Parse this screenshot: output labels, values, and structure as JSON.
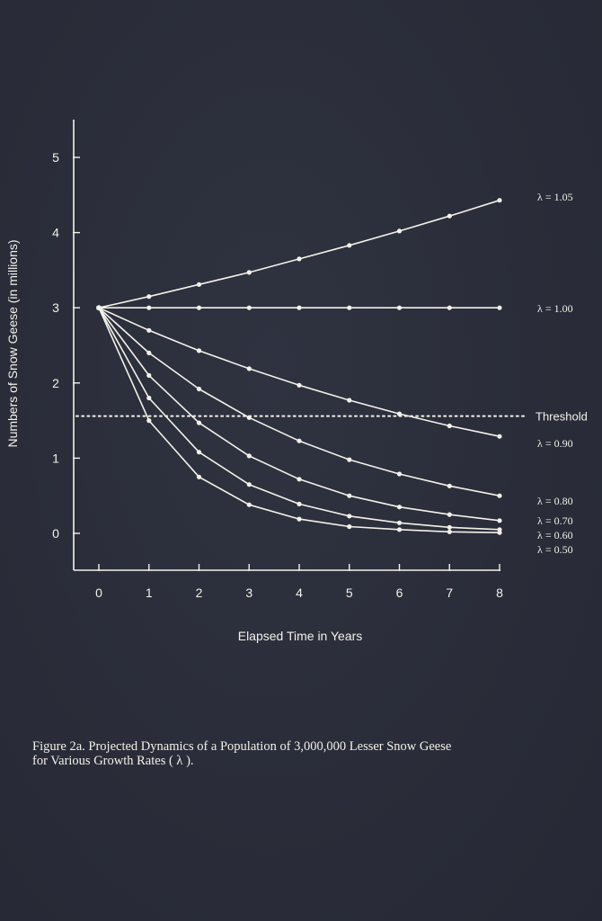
{
  "chart_data": {
    "type": "line",
    "xlabel": "Elapsed Time in Years",
    "ylabel": "Numbers of Snow Geese (in millions)",
    "x": [
      0,
      1,
      2,
      3,
      4,
      5,
      6,
      7,
      8
    ],
    "xticks": [
      "0",
      "1",
      "2",
      "3",
      "4",
      "5",
      "6",
      "7",
      "8"
    ],
    "yticks": [
      "0",
      "1",
      "2",
      "3",
      "4",
      "5"
    ],
    "xlim": [
      -0.5,
      8.5
    ],
    "ylim": [
      -0.5,
      5.5
    ],
    "grid": false,
    "series": [
      {
        "name": "λ = 1.05",
        "values": [
          3.0,
          3.15,
          3.31,
          3.47,
          3.65,
          3.83,
          4.02,
          4.22,
          4.43
        ]
      },
      {
        "name": "λ = 1.00",
        "values": [
          3.0,
          3.0,
          3.0,
          3.0,
          3.0,
          3.0,
          3.0,
          3.0,
          3.0
        ]
      },
      {
        "name": "λ = 0.90",
        "values": [
          3.0,
          2.7,
          2.43,
          2.19,
          1.97,
          1.77,
          1.59,
          1.43,
          1.29
        ]
      },
      {
        "name": "λ = 0.80",
        "values": [
          3.0,
          2.4,
          1.92,
          1.54,
          1.23,
          0.98,
          0.79,
          0.63,
          0.5
        ]
      },
      {
        "name": "λ = 0.70",
        "values": [
          3.0,
          2.1,
          1.47,
          1.03,
          0.72,
          0.5,
          0.35,
          0.25,
          0.17
        ]
      },
      {
        "name": "λ = 0.60",
        "values": [
          3.0,
          1.8,
          1.08,
          0.65,
          0.39,
          0.23,
          0.14,
          0.08,
          0.05
        ]
      },
      {
        "name": "λ = 0.50",
        "values": [
          3.0,
          1.5,
          0.75,
          0.38,
          0.19,
          0.09,
          0.05,
          0.02,
          0.01
        ]
      }
    ],
    "threshold": {
      "label": "Threshold",
      "value": 1.5
    },
    "line_color": "#f4f1ea"
  },
  "caption": {
    "line1": "Figure 2a.  Projected Dynamics of a Population of 3,000,000 Lesser Snow Geese",
    "line2": "for Various Growth Rates ( λ )."
  },
  "colors": {
    "background": "#2b2e3a",
    "foreground": "#f4f1ea"
  }
}
